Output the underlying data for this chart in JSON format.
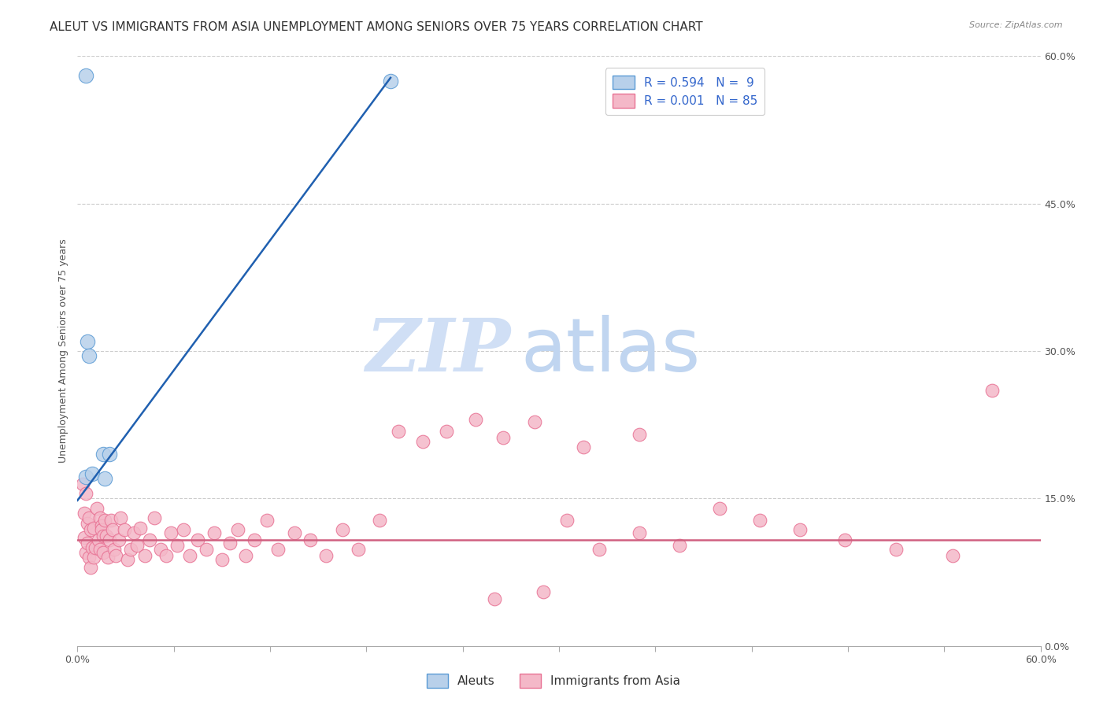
{
  "title": "ALEUT VS IMMIGRANTS FROM ASIA UNEMPLOYMENT AMONG SENIORS OVER 75 YEARS CORRELATION CHART",
  "source": "Source: ZipAtlas.com",
  "ylabel": "Unemployment Among Seniors over 75 years",
  "xlim": [
    0,
    0.6
  ],
  "ylim": [
    0,
    0.6
  ],
  "xticks": [
    0.0,
    0.06,
    0.12,
    0.18,
    0.24,
    0.3,
    0.36,
    0.42,
    0.48,
    0.54,
    0.6
  ],
  "yticks_right": [
    0.0,
    0.15,
    0.3,
    0.45,
    0.6
  ],
  "yticklabels_right": [
    "0.0%",
    "15.0%",
    "30.0%",
    "45.0%",
    "60.0%"
  ],
  "aleut_color": "#b8d0ea",
  "aleut_edge_color": "#5b9bd5",
  "asia_color": "#f4b8c8",
  "asia_edge_color": "#e87294",
  "trend_blue_color": "#2060b0",
  "trend_pink_color": "#d06080",
  "legend_blue_label": "R = 0.594   N =  9",
  "legend_pink_label": "R = 0.001   N = 85",
  "legend_label_color": "#3366cc",
  "watermark_zip": "ZIP",
  "watermark_atlas": "atlas",
  "watermark_color_zip": "#c5d8f0",
  "watermark_color_atlas": "#b0c8e8",
  "grid_color": "#cccccc",
  "background_color": "#ffffff",
  "aleut_x": [
    0.005,
    0.005,
    0.006,
    0.007,
    0.009,
    0.016,
    0.017,
    0.02,
    0.195
  ],
  "aleut_y": [
    0.58,
    0.172,
    0.31,
    0.295,
    0.175,
    0.195,
    0.17,
    0.195,
    0.575
  ],
  "blue_line_x": [
    0.0,
    0.195
  ],
  "blue_line_y": [
    0.148,
    0.578
  ],
  "pink_line_y": 0.108,
  "asia_x": [
    0.003,
    0.004,
    0.004,
    0.005,
    0.005,
    0.006,
    0.006,
    0.007,
    0.007,
    0.008,
    0.008,
    0.009,
    0.01,
    0.01,
    0.011,
    0.012,
    0.013,
    0.014,
    0.014,
    0.015,
    0.015,
    0.016,
    0.016,
    0.017,
    0.018,
    0.019,
    0.02,
    0.021,
    0.022,
    0.023,
    0.024,
    0.026,
    0.027,
    0.029,
    0.031,
    0.033,
    0.035,
    0.037,
    0.039,
    0.042,
    0.045,
    0.048,
    0.052,
    0.055,
    0.058,
    0.062,
    0.066,
    0.07,
    0.075,
    0.08,
    0.085,
    0.09,
    0.095,
    0.1,
    0.105,
    0.11,
    0.118,
    0.125,
    0.135,
    0.145,
    0.155,
    0.165,
    0.175,
    0.188,
    0.2,
    0.215,
    0.23,
    0.248,
    0.265,
    0.285,
    0.305,
    0.325,
    0.35,
    0.375,
    0.4,
    0.425,
    0.45,
    0.478,
    0.51,
    0.545,
    0.57,
    0.315,
    0.35,
    0.29,
    0.26
  ],
  "asia_y": [
    0.165,
    0.135,
    0.11,
    0.155,
    0.095,
    0.105,
    0.125,
    0.09,
    0.13,
    0.08,
    0.118,
    0.1,
    0.09,
    0.12,
    0.1,
    0.14,
    0.108,
    0.13,
    0.098,
    0.122,
    0.118,
    0.112,
    0.095,
    0.128,
    0.112,
    0.09,
    0.108,
    0.128,
    0.118,
    0.098,
    0.092,
    0.108,
    0.13,
    0.118,
    0.088,
    0.098,
    0.115,
    0.102,
    0.12,
    0.092,
    0.108,
    0.13,
    0.098,
    0.092,
    0.115,
    0.102,
    0.118,
    0.092,
    0.108,
    0.098,
    0.115,
    0.088,
    0.105,
    0.118,
    0.092,
    0.108,
    0.128,
    0.098,
    0.115,
    0.108,
    0.092,
    0.118,
    0.098,
    0.128,
    0.218,
    0.208,
    0.218,
    0.23,
    0.212,
    0.228,
    0.128,
    0.098,
    0.115,
    0.102,
    0.14,
    0.128,
    0.118,
    0.108,
    0.098,
    0.092,
    0.26,
    0.202,
    0.215,
    0.055,
    0.048
  ],
  "marker_size": 80,
  "title_fontsize": 11,
  "axis_fontsize": 9,
  "legend_fontsize": 11
}
